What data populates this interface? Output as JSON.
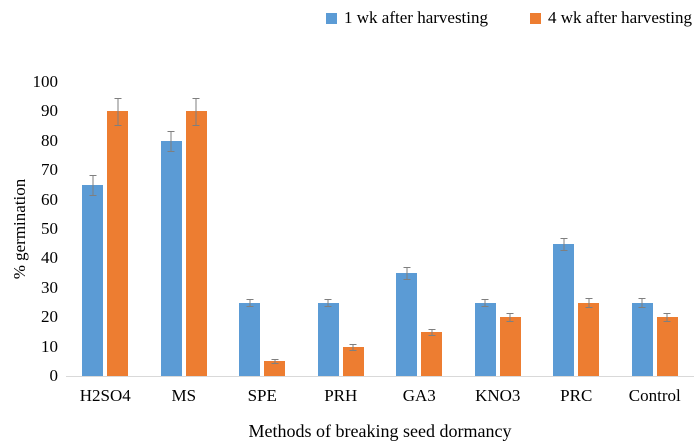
{
  "legend": {
    "items": [
      {
        "label": "1 wk after harvesting",
        "color": "#5B9BD5"
      },
      {
        "label": "4 wk after harvesting",
        "color": "#ED7D31"
      }
    ]
  },
  "chart_data": {
    "type": "bar",
    "title": "",
    "categories": [
      "H2SO4",
      "MS",
      "SPE",
      "PRH",
      "GA3",
      "KNO3",
      "PRC",
      "Control"
    ],
    "series": [
      {
        "name": "1 wk after harvesting",
        "color": "#5B9BD5",
        "values": [
          65,
          80,
          25,
          25,
          35,
          25,
          45,
          25
        ],
        "errors": [
          3.5,
          3.5,
          1.2,
          1.2,
          2,
          1.3,
          2,
          1.5
        ]
      },
      {
        "name": "4 wk after harvesting",
        "color": "#ED7D31",
        "values": [
          90,
          90,
          5,
          10,
          15,
          20,
          25,
          20
        ],
        "errors": [
          4.5,
          4.5,
          0.7,
          1,
          1,
          1.3,
          1.5,
          1.3
        ]
      }
    ],
    "xlabel": "Methods of breaking seed dormancy",
    "ylabel": "% germination",
    "ylim": [
      0,
      100
    ],
    "ytick_step": 10,
    "grid": false,
    "legend_position": "top-right",
    "error_bar_color": "#7F7F7F",
    "axis_line_color": "#D9D9D9",
    "text_color": "#000000"
  }
}
